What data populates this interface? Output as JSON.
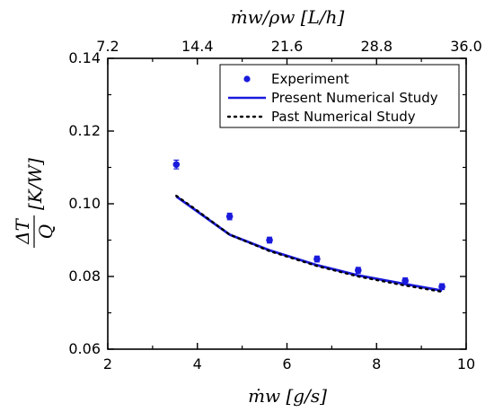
{
  "chart_data": {
    "type": "scatter",
    "title": "",
    "xlabel": "ṁw [g/s]",
    "ylabel_numerator": "ΔT",
    "ylabel_denominator": "Q",
    "ylabel_unit": "[K/W]",
    "top_xlabel": "ṁw/ρw [L/h]",
    "xlim": [
      2,
      10
    ],
    "ylim": [
      0.06,
      0.14
    ],
    "x_ticks": [
      2,
      4,
      6,
      8,
      10
    ],
    "x_tick_labels": [
      "2",
      "4",
      "6",
      "8",
      "10"
    ],
    "y_ticks": [
      0.06,
      0.08,
      0.1,
      0.12,
      0.14
    ],
    "y_tick_labels": [
      "0.06",
      "0.08",
      "0.10",
      "0.12",
      "0.14"
    ],
    "top_x_ticks": [
      7.2,
      14.4,
      21.6,
      28.8,
      36.0
    ],
    "top_x_tick_labels": [
      "7.2",
      "14.4",
      "21.6",
      "28.8",
      "36.0"
    ],
    "top_axis_factor": 3.6,
    "grid": false,
    "legend_position": "top-right",
    "series": [
      {
        "name": "Experiment",
        "kind": "scatter",
        "color": "#1a1adc",
        "x": [
          3.53,
          4.72,
          5.61,
          6.67,
          7.59,
          8.64,
          9.46
        ],
        "y": [
          0.1108,
          0.0965,
          0.09,
          0.0848,
          0.0817,
          0.0788,
          0.0772
        ],
        "yerr": [
          0.0012,
          0.0009,
          0.0008,
          0.0008,
          0.0008,
          0.0008,
          0.0008
        ]
      },
      {
        "name": "Present Numerical Study",
        "kind": "line",
        "color": "#1a1adc",
        "x": [
          3.53,
          4.72,
          5.61,
          6.67,
          7.59,
          8.64,
          9.46
        ],
        "y": [
          0.102,
          0.0915,
          0.0872,
          0.0831,
          0.0803,
          0.0779,
          0.0761
        ]
      },
      {
        "name": "Past Numerical Study",
        "kind": "dotted",
        "color": "#000000",
        "x": [
          3.53,
          3.9,
          4.72,
          5.61,
          6.67,
          7.59,
          8.64,
          9.46
        ],
        "y": [
          0.1022,
          0.099,
          0.0915,
          0.087,
          0.0829,
          0.08,
          0.0775,
          0.0758
        ]
      }
    ]
  }
}
